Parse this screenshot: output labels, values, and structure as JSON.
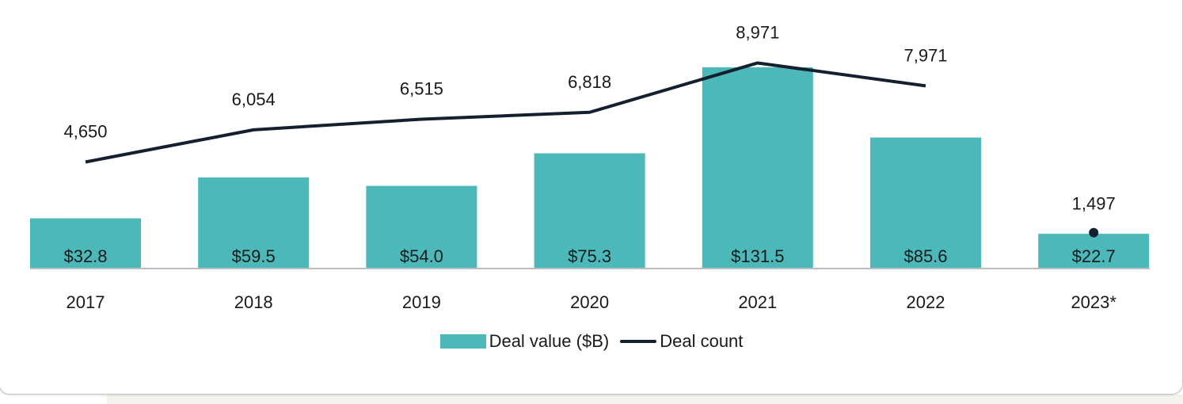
{
  "chart_data": {
    "type": "bar+line",
    "categories": [
      "2017",
      "2018",
      "2019",
      "2020",
      "2021",
      "2022",
      "2023*"
    ],
    "series": [
      {
        "name": "Deal value ($B)",
        "type": "bar",
        "values": [
          32.8,
          59.5,
          54.0,
          75.3,
          131.5,
          85.6,
          22.7
        ],
        "labels": [
          "$32.8",
          "$59.5",
          "$54.0",
          "$75.3",
          "$131.5",
          "$85.6",
          "$22.7"
        ],
        "color": "#4bb8b9"
      },
      {
        "name": "Deal count",
        "type": "line",
        "values": [
          4650,
          6054,
          6515,
          6818,
          8971,
          7971,
          1497
        ],
        "labels": [
          "4,650",
          "6,054",
          "6,515",
          "6,818",
          "8,971",
          "7,971",
          "1,497"
        ],
        "color": "#14202e"
      }
    ],
    "legend": "bottom-center",
    "grid": false
  }
}
